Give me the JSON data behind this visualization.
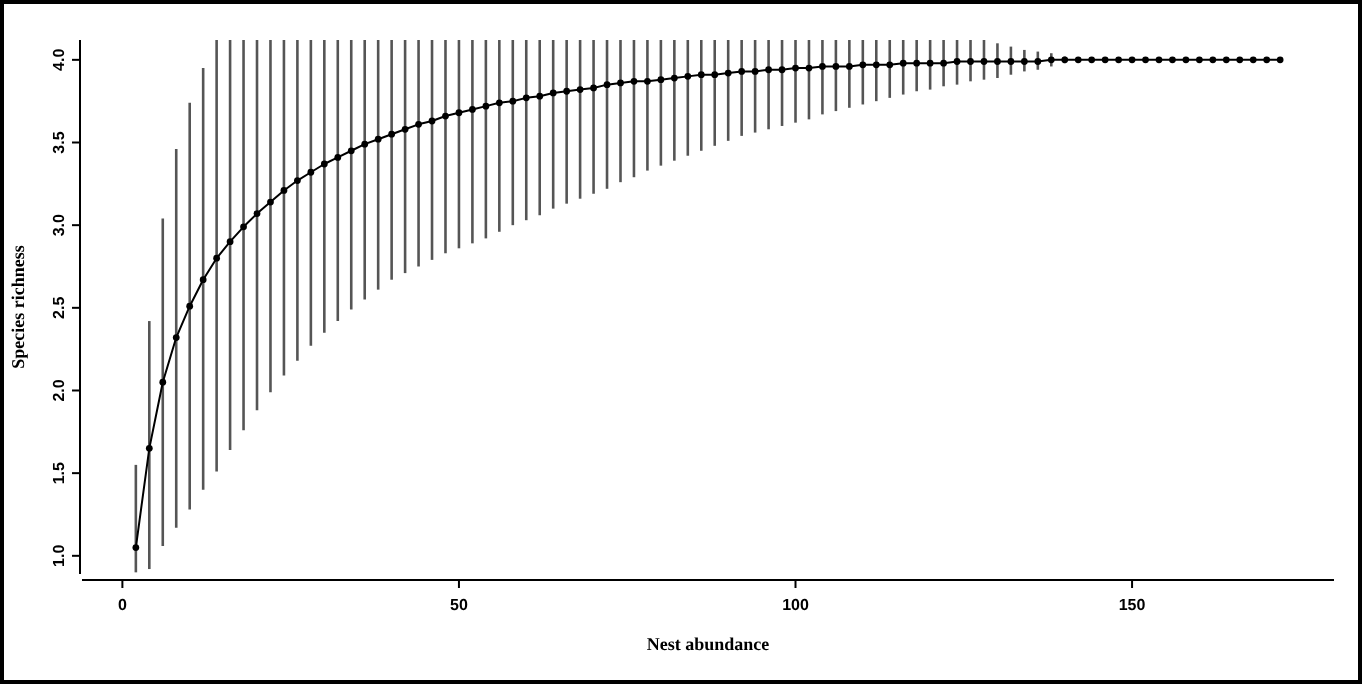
{
  "chart_data": {
    "type": "line",
    "xlabel": "Nest abundance",
    "ylabel": "Species richness",
    "xlim": [
      -6,
      180
    ],
    "ylim": [
      0.89,
      4.12
    ],
    "xticks": [
      0,
      50,
      100,
      150
    ],
    "yticks": [
      {
        "value": 1,
        "label": "1.0"
      },
      {
        "value": 1.5,
        "label": "1.5"
      },
      {
        "value": 2,
        "label": "2.0"
      },
      {
        "value": 2.5,
        "label": "2.5"
      },
      {
        "value": 3,
        "label": "3.0"
      },
      {
        "value": 3.5,
        "label": "3.5"
      },
      {
        "value": 4,
        "label": "4.0"
      }
    ],
    "marker": "circle",
    "line_style": "solid",
    "x": [
      2,
      4,
      6,
      8,
      10,
      12,
      14,
      16,
      18,
      20,
      22,
      24,
      26,
      28,
      30,
      32,
      34,
      36,
      38,
      40,
      42,
      44,
      46,
      48,
      50,
      52,
      54,
      56,
      58,
      60,
      62,
      64,
      66,
      68,
      70,
      72,
      74,
      76,
      78,
      80,
      82,
      84,
      86,
      88,
      90,
      92,
      94,
      96,
      98,
      100,
      102,
      104,
      106,
      108,
      110,
      112,
      114,
      116,
      118,
      120,
      122,
      124,
      126,
      128,
      130,
      132,
      134,
      136,
      138,
      140,
      142,
      144,
      146,
      148,
      150,
      152,
      154,
      156,
      158,
      160,
      162,
      164,
      166,
      168,
      170,
      172
    ],
    "series": [
      {
        "color": "#000000",
        "values": [
          1.05,
          1.65,
          2.05,
          2.32,
          2.51,
          2.67,
          2.8,
          2.9,
          2.99,
          3.07,
          3.14,
          3.21,
          3.27,
          3.32,
          3.37,
          3.41,
          3.45,
          3.49,
          3.52,
          3.55,
          3.58,
          3.61,
          3.63,
          3.66,
          3.68,
          3.7,
          3.72,
          3.74,
          3.75,
          3.77,
          3.78,
          3.8,
          3.81,
          3.82,
          3.83,
          3.85,
          3.86,
          3.87,
          3.87,
          3.88,
          3.89,
          3.9,
          3.91,
          3.91,
          3.92,
          3.93,
          3.93,
          3.94,
          3.94,
          3.95,
          3.95,
          3.96,
          3.96,
          3.96,
          3.97,
          3.97,
          3.97,
          3.98,
          3.98,
          3.98,
          3.98,
          3.99,
          3.99,
          3.99,
          3.99,
          3.99,
          3.99,
          3.99,
          4.0,
          4.0,
          4.0,
          4.0,
          4.0,
          4.0,
          4.0,
          4.0,
          4.0,
          4.0,
          4.0,
          4.0,
          4.0,
          4.0,
          4.0,
          4.0,
          4.0,
          4.0
        ],
        "errors": [
          [
            0.9,
            1.55
          ],
          [
            0.92,
            2.42
          ],
          [
            1.06,
            3.04
          ],
          [
            1.17,
            3.46
          ],
          [
            1.28,
            3.74
          ],
          [
            1.4,
            3.95
          ],
          [
            1.51,
            4.12
          ],
          [
            1.64,
            4.12
          ],
          [
            1.76,
            4.12
          ],
          [
            1.88,
            4.12
          ],
          [
            1.99,
            4.12
          ],
          [
            2.09,
            4.12
          ],
          [
            2.18,
            4.12
          ],
          [
            2.27,
            4.12
          ],
          [
            2.35,
            4.12
          ],
          [
            2.42,
            4.12
          ],
          [
            2.49,
            4.12
          ],
          [
            2.55,
            4.12
          ],
          [
            2.61,
            4.12
          ],
          [
            2.67,
            4.12
          ],
          [
            2.71,
            4.12
          ],
          [
            2.75,
            4.12
          ],
          [
            2.79,
            4.12
          ],
          [
            2.83,
            4.12
          ],
          [
            2.86,
            4.12
          ],
          [
            2.89,
            4.12
          ],
          [
            2.92,
            4.12
          ],
          [
            2.96,
            4.12
          ],
          [
            3.0,
            4.12
          ],
          [
            3.03,
            4.12
          ],
          [
            3.06,
            4.12
          ],
          [
            3.1,
            4.12
          ],
          [
            3.13,
            4.12
          ],
          [
            3.16,
            4.12
          ],
          [
            3.19,
            4.12
          ],
          [
            3.22,
            4.12
          ],
          [
            3.26,
            4.12
          ],
          [
            3.29,
            4.12
          ],
          [
            3.33,
            4.12
          ],
          [
            3.36,
            4.12
          ],
          [
            3.39,
            4.12
          ],
          [
            3.42,
            4.12
          ],
          [
            3.45,
            4.12
          ],
          [
            3.48,
            4.12
          ],
          [
            3.51,
            4.12
          ],
          [
            3.54,
            4.12
          ],
          [
            3.56,
            4.12
          ],
          [
            3.58,
            4.12
          ],
          [
            3.6,
            4.12
          ],
          [
            3.62,
            4.12
          ],
          [
            3.64,
            4.12
          ],
          [
            3.67,
            4.12
          ],
          [
            3.69,
            4.12
          ],
          [
            3.71,
            4.12
          ],
          [
            3.73,
            4.12
          ],
          [
            3.75,
            4.12
          ],
          [
            3.77,
            4.12
          ],
          [
            3.79,
            4.12
          ],
          [
            3.81,
            4.12
          ],
          [
            3.82,
            4.12
          ],
          [
            3.84,
            4.12
          ],
          [
            3.85,
            4.12
          ],
          [
            3.87,
            4.12
          ],
          [
            3.88,
            4.12
          ],
          [
            3.89,
            4.1
          ],
          [
            3.91,
            4.08
          ],
          [
            3.93,
            4.06
          ],
          [
            3.94,
            4.05
          ],
          [
            3.96,
            4.04
          ],
          [
            3.98,
            4.02
          ],
          [
            3.99,
            4.01
          ],
          null,
          null,
          null,
          null,
          null,
          null,
          null,
          null,
          null,
          null,
          null,
          null,
          null,
          null,
          null
        ]
      }
    ]
  }
}
